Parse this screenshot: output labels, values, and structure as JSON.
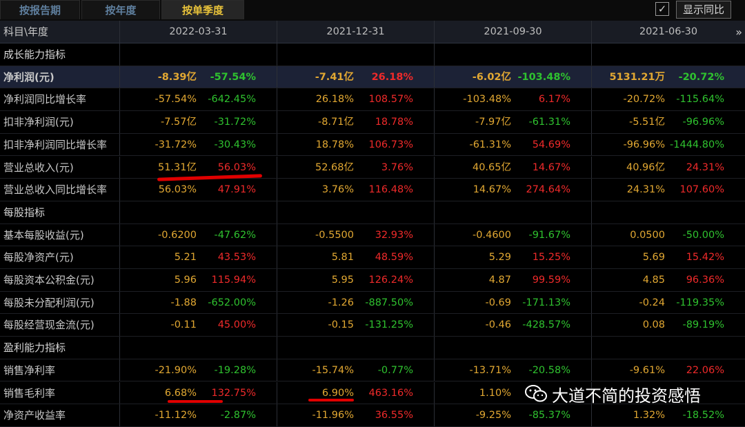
{
  "tabs": [
    {
      "label": "按报告期",
      "active": false
    },
    {
      "label": "按年度",
      "active": false
    },
    {
      "label": "按单季度",
      "active": true
    }
  ],
  "show_yoy": {
    "checkbox": "✓",
    "label": "显示同比"
  },
  "header": {
    "label": "科目\\年度",
    "dates": [
      "2022-03-31",
      "2021-12-31",
      "2021-09-30",
      "2021-06-30"
    ],
    "more": "»"
  },
  "rows": [
    {
      "label": "成长能力指标",
      "type": "section",
      "cells": []
    },
    {
      "label": "净利润(元)",
      "type": "highlight",
      "cells": [
        [
          "-8.39亿",
          "-57.54%",
          "neg"
        ],
        [
          "-7.41亿",
          "26.18%",
          "pos"
        ],
        [
          "-6.02亿",
          "-103.48%",
          "neg"
        ],
        [
          "5131.21万",
          "-20.72%",
          "neg"
        ]
      ]
    },
    {
      "label": "净利润同比增长率",
      "type": "data",
      "cells": [
        [
          "-57.54%",
          "-642.45%",
          "neg"
        ],
        [
          "26.18%",
          "108.57%",
          "pos"
        ],
        [
          "-103.48%",
          "6.17%",
          "pos"
        ],
        [
          "-20.72%",
          "-115.64%",
          "neg"
        ]
      ]
    },
    {
      "label": "扣非净利润(元)",
      "type": "data",
      "cells": [
        [
          "-7.57亿",
          "-31.72%",
          "neg"
        ],
        [
          "-8.71亿",
          "18.78%",
          "pos"
        ],
        [
          "-7.97亿",
          "-61.31%",
          "neg"
        ],
        [
          "-5.51亿",
          "-96.96%",
          "neg"
        ]
      ]
    },
    {
      "label": "扣非净利润同比增长率",
      "type": "data",
      "cells": [
        [
          "-31.72%",
          "-30.43%",
          "neg"
        ],
        [
          "18.78%",
          "106.73%",
          "pos"
        ],
        [
          "-61.31%",
          "54.69%",
          "pos"
        ],
        [
          "-96.96%",
          "-1444.80%",
          "neg"
        ]
      ]
    },
    {
      "label": "营业总收入(元)",
      "type": "data",
      "cells": [
        [
          "51.31亿",
          "56.03%",
          "pos"
        ],
        [
          "52.68亿",
          "3.76%",
          "pos"
        ],
        [
          "40.65亿",
          "14.67%",
          "pos"
        ],
        [
          "40.96亿",
          "24.31%",
          "pos"
        ]
      ]
    },
    {
      "label": "营业总收入同比增长率",
      "type": "data",
      "cells": [
        [
          "56.03%",
          "47.91%",
          "pos"
        ],
        [
          "3.76%",
          "116.48%",
          "pos"
        ],
        [
          "14.67%",
          "274.64%",
          "pos"
        ],
        [
          "24.31%",
          "107.60%",
          "pos"
        ]
      ]
    },
    {
      "label": "每股指标",
      "type": "section",
      "cells": []
    },
    {
      "label": "基本每股收益(元)",
      "type": "data",
      "cells": [
        [
          "-0.6200",
          "-47.62%",
          "neg"
        ],
        [
          "-0.5500",
          "32.93%",
          "pos"
        ],
        [
          "-0.4600",
          "-91.67%",
          "neg"
        ],
        [
          "0.0500",
          "-50.00%",
          "neg"
        ]
      ]
    },
    {
      "label": "每股净资产(元)",
      "type": "data",
      "cells": [
        [
          "5.21",
          "43.53%",
          "pos"
        ],
        [
          "5.81",
          "48.59%",
          "pos"
        ],
        [
          "5.29",
          "15.25%",
          "pos"
        ],
        [
          "5.69",
          "15.42%",
          "pos"
        ]
      ]
    },
    {
      "label": "每股资本公积金(元)",
      "type": "data",
      "cells": [
        [
          "5.96",
          "115.94%",
          "pos"
        ],
        [
          "5.95",
          "126.24%",
          "pos"
        ],
        [
          "4.87",
          "99.59%",
          "pos"
        ],
        [
          "4.85",
          "96.36%",
          "pos"
        ]
      ]
    },
    {
      "label": "每股未分配利润(元)",
      "type": "data",
      "cells": [
        [
          "-1.88",
          "-652.00%",
          "neg"
        ],
        [
          "-1.26",
          "-887.50%",
          "neg"
        ],
        [
          "-0.69",
          "-171.13%",
          "neg"
        ],
        [
          "-0.24",
          "-119.35%",
          "neg"
        ]
      ]
    },
    {
      "label": "每股经营现金流(元)",
      "type": "data",
      "cells": [
        [
          "-0.11",
          "45.00%",
          "pos"
        ],
        [
          "-0.15",
          "-131.25%",
          "neg"
        ],
        [
          "-0.46",
          "-428.57%",
          "neg"
        ],
        [
          "0.08",
          "-89.19%",
          "neg"
        ]
      ]
    },
    {
      "label": "盈利能力指标",
      "type": "section",
      "cells": []
    },
    {
      "label": "销售净利率",
      "type": "data",
      "cells": [
        [
          "-21.90%",
          "-19.28%",
          "neg"
        ],
        [
          "-15.74%",
          "-0.77%",
          "neg"
        ],
        [
          "-13.71%",
          "-20.58%",
          "neg"
        ],
        [
          "-9.61%",
          "22.06%",
          "pos"
        ]
      ]
    },
    {
      "label": "销售毛利率",
      "type": "data",
      "cells": [
        [
          "6.68%",
          "132.75%",
          "pos"
        ],
        [
          "6.90%",
          "463.16%",
          "pos"
        ],
        [
          "1.10%",
          "",
          ""
        ],
        [
          "",
          "",
          " "
        ]
      ]
    },
    {
      "label": "净资产收益率",
      "type": "data",
      "cells": [
        [
          "-11.12%",
          "-2.87%",
          "neg"
        ],
        [
          "-11.96%",
          "36.55%",
          "pos"
        ],
        [
          "-9.25%",
          "-85.37%",
          "neg"
        ],
        [
          "1.32%",
          "-18.52%",
          "neg"
        ]
      ]
    }
  ],
  "watermark": {
    "icon": "wechat-icon",
    "text": "大道不简的投资感悟"
  },
  "colors": {
    "value": "#e2a832",
    "negative": "#2fc22f",
    "positive": "#ef2a2a",
    "active_tab": "#e8c23a",
    "mark": "#e00000"
  }
}
